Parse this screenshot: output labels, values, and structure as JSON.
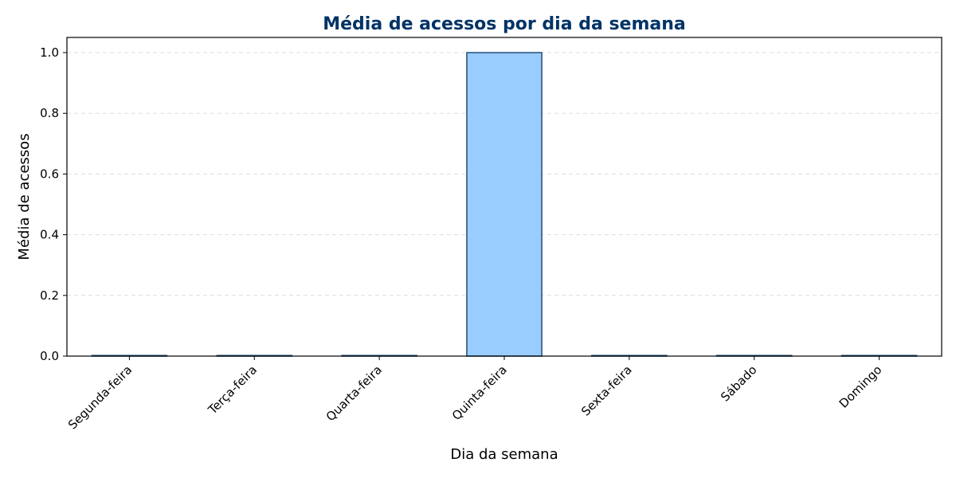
{
  "chart_data": {
    "type": "bar",
    "title": "Média de acessos por dia da semana",
    "xlabel": "Dia da semana",
    "ylabel": "Média de acessos",
    "categories": [
      "Segunda-feira",
      "Terça-feira",
      "Quarta-feira",
      "Quinta-feira",
      "Sexta-feira",
      "Sábado",
      "Domingo"
    ],
    "values": [
      0,
      0,
      0,
      1.0,
      0,
      0,
      0
    ],
    "ylim": [
      0,
      1.05
    ],
    "yticks": [
      "0.0",
      "0.2",
      "0.4",
      "0.6",
      "0.8",
      "1.0"
    ],
    "grid": "horizontal dashed",
    "colors": {
      "bar_fill": "#99ccff",
      "bar_edge": "#1f4e79",
      "title": "#003366",
      "grid": "#dddddd"
    }
  }
}
